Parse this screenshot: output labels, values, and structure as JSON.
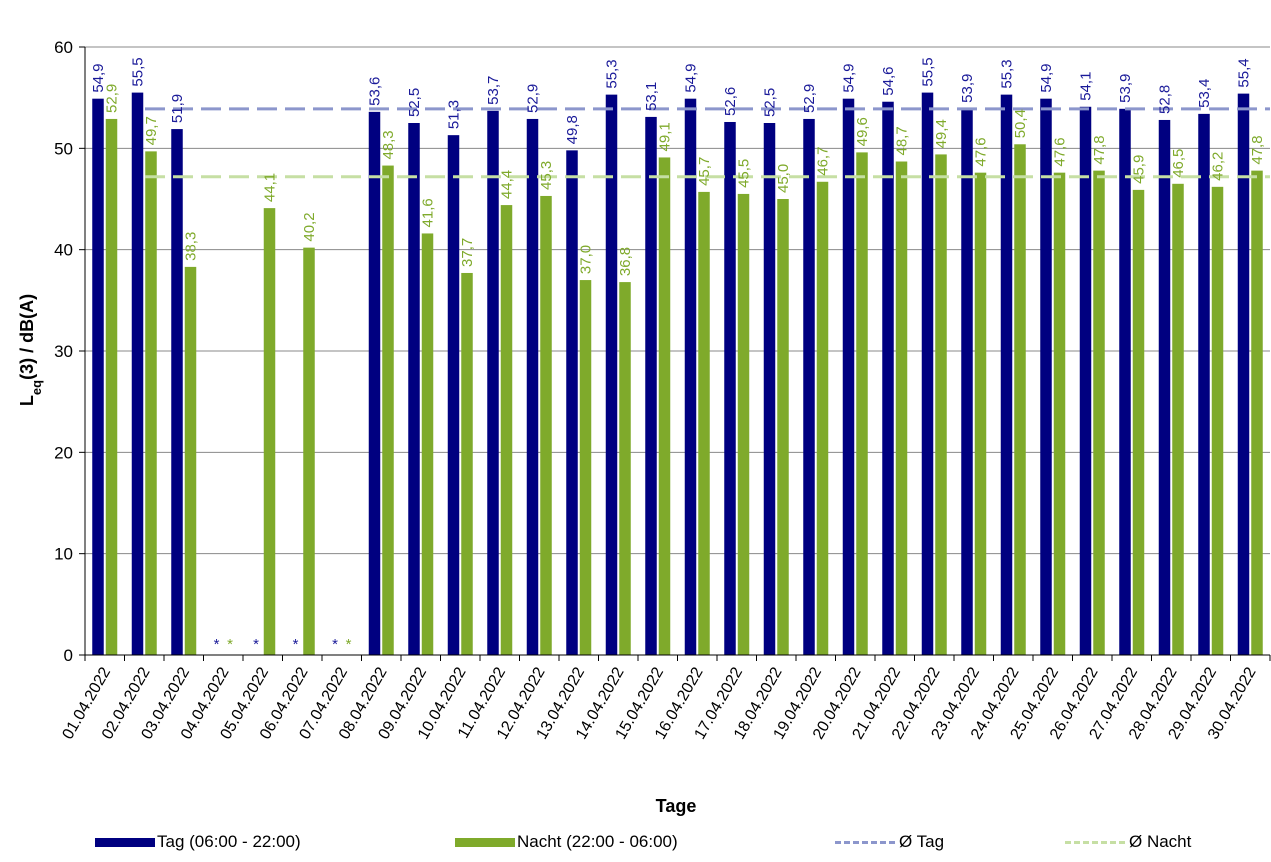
{
  "chart_data": {
    "type": "bar",
    "title": "",
    "xlabel": "Tage",
    "ylabel": "L(3) / dB(A)",
    "ylabel_parts": {
      "main": "L",
      "sub": "eq",
      "rest": "(3) / dB(A)"
    },
    "ylim": [
      0,
      60
    ],
    "yticks": [
      0,
      10,
      20,
      30,
      40,
      50,
      60
    ],
    "grid": true,
    "legend_position": "bottom",
    "categories": [
      "01.04.2022",
      "02.04.2022",
      "03.04.2022",
      "04.04.2022",
      "05.04.2022",
      "06.04.2022",
      "07.04.2022",
      "08.04.2022",
      "09.04.2022",
      "10.04.2022",
      "11.04.2022",
      "12.04.2022",
      "13.04.2022",
      "14.04.2022",
      "15.04.2022",
      "16.04.2022",
      "17.04.2022",
      "18.04.2022",
      "19.04.2022",
      "20.04.2022",
      "21.04.2022",
      "22.04.2022",
      "23.04.2022",
      "24.04.2022",
      "25.04.2022",
      "26.04.2022",
      "27.04.2022",
      "28.04.2022",
      "29.04.2022",
      "30.04.2022"
    ],
    "series": [
      {
        "name": "Tag (06:00 - 22:00)",
        "color": "#000080",
        "values": [
          54.9,
          55.5,
          51.9,
          null,
          null,
          null,
          null,
          53.6,
          52.5,
          51.3,
          53.7,
          52.9,
          49.8,
          55.3,
          53.1,
          54.9,
          52.6,
          52.5,
          52.9,
          54.9,
          54.6,
          55.5,
          53.9,
          55.3,
          54.9,
          54.1,
          53.9,
          52.8,
          53.4,
          55.4
        ],
        "labels": [
          "54,9",
          "55,5",
          "51,9",
          "*",
          "*",
          "*",
          "*",
          "53,6",
          "52,5",
          "51,3",
          "53,7",
          "52,9",
          "49,8",
          "55,3",
          "53,1",
          "54,9",
          "52,6",
          "52,5",
          "52,9",
          "54,9",
          "54,6",
          "55,5",
          "53,9",
          "55,3",
          "54,9",
          "54,1",
          "53,9",
          "52,8",
          "53,4",
          "55,4"
        ]
      },
      {
        "name": "Nacht (22:00 - 06:00)",
        "color": "#7FAA2B",
        "values": [
          52.9,
          49.7,
          38.3,
          null,
          44.1,
          40.2,
          null,
          48.3,
          41.6,
          37.7,
          44.4,
          45.3,
          37.0,
          36.8,
          49.1,
          45.7,
          45.5,
          45.0,
          46.7,
          49.6,
          48.7,
          49.4,
          47.6,
          50.4,
          47.6,
          47.8,
          45.9,
          46.5,
          46.2,
          47.8
        ],
        "labels": [
          "52,9",
          "49,7",
          "38,3",
          "*",
          "44,1",
          "40,2",
          "*",
          "48,3",
          "41,6",
          "37,7",
          "44,4",
          "45,3",
          "37,0",
          "36,8",
          "49,1",
          "45,7",
          "45,5",
          "45,0",
          "46,7",
          "49,6",
          "48,7",
          "49,4",
          "47,6",
          "50,4",
          "47,6",
          "47,8",
          "45,9",
          "46,5",
          "46,2",
          "47,8"
        ]
      }
    ],
    "reference_lines": [
      {
        "name": "Ø Tag",
        "value": 53.9,
        "color": "#8C96CC"
      },
      {
        "name": "Ø Nacht",
        "value": 47.2,
        "color": "#C6DFA4"
      }
    ]
  }
}
